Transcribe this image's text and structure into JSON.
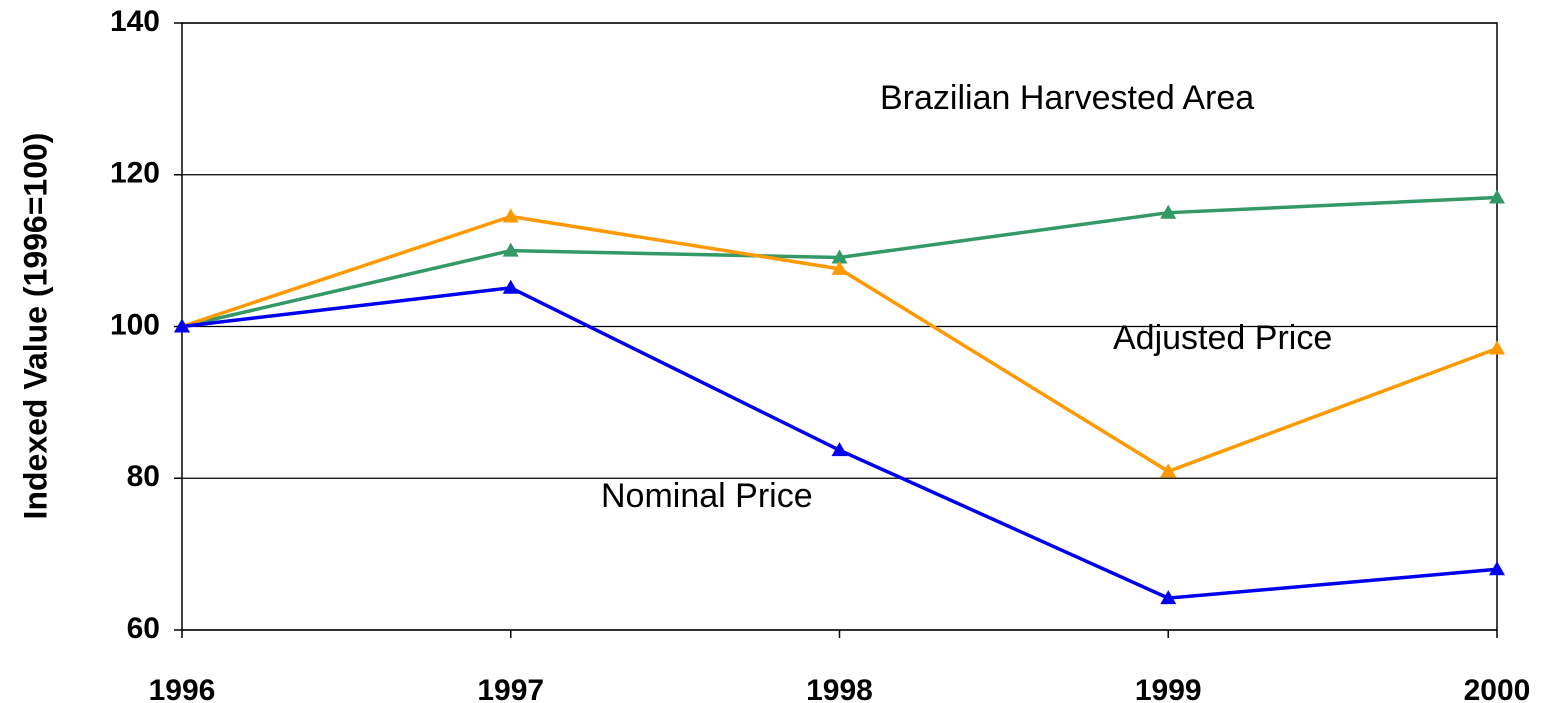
{
  "chart_data": {
    "type": "line",
    "y_label": "Indexed Value (1996=100)",
    "x": [
      1996,
      1997,
      1998,
      1999,
      2000
    ],
    "xlim": [
      1996,
      2000
    ],
    "xticks": [
      1996,
      1997,
      1998,
      1999,
      2000
    ],
    "ylim": [
      60,
      140
    ],
    "yticks": [
      60,
      80,
      100,
      120,
      140
    ],
    "grid": true,
    "marker": "triangle",
    "series": [
      {
        "name": "Brazilian Harvested Area",
        "color": "#339966",
        "values": [
          100,
          110,
          109.1,
          115,
          117
        ]
      },
      {
        "name": "Adjusted Price",
        "color": "#ff9900",
        "values": [
          100,
          114.5,
          107.6,
          80.9,
          97.1
        ]
      },
      {
        "name": "Nominal Price",
        "color": "#0000ee",
        "values": [
          100,
          105.1,
          83.7,
          64.2,
          68
        ]
      }
    ]
  }
}
